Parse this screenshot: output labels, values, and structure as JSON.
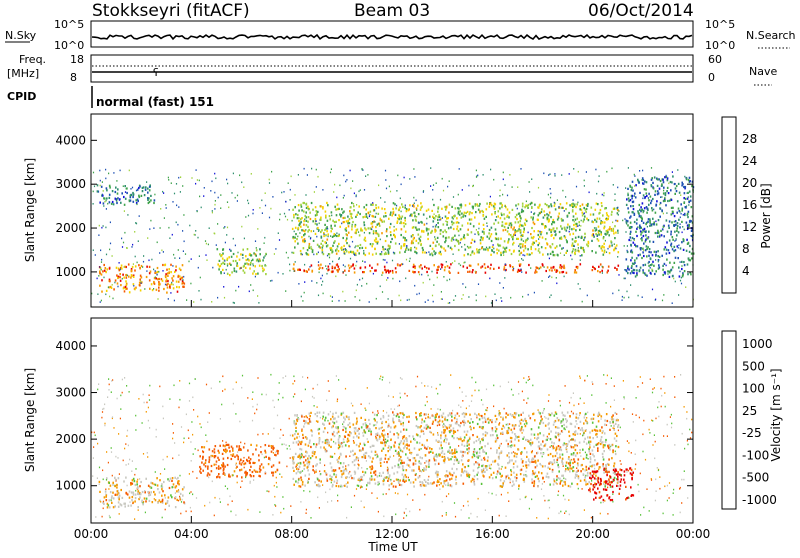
{
  "header": {
    "title": "Stokkseyri (fitACF)",
    "beam": "Beam 03",
    "date": "06/Oct/2014"
  },
  "aux": {
    "nsky_label": "N.Sky",
    "nsky_ticks": [
      "10^5",
      "10^0"
    ],
    "nsearch_label": "N.Search",
    "nsearch_ticks": [
      "10^5",
      "10^0"
    ],
    "freq_label": "Freq.",
    "freq_unit": "[MHz]",
    "freq_ticks": [
      "18",
      "8"
    ],
    "nave_label": "Nave",
    "nave_ticks": [
      "60",
      "0"
    ],
    "cpid_label": "CPID",
    "cpid_value": "normal (fast) 151"
  },
  "colors": {
    "power": [
      "#1414d8",
      "#1e50b4",
      "#2f8f6e",
      "#3fa34a",
      "#9fd23c",
      "#f5d200",
      "#f59a00",
      "#f55a00",
      "#e60000"
    ],
    "velocity": [
      "#e60000",
      "#f55a00",
      "#f59a00",
      "#c8c8c0",
      "#c8c8c0",
      "#59c23a",
      "#2f8f6e",
      "#1e50b4"
    ]
  },
  "chart_data": [
    {
      "type": "heatmap",
      "name": "power",
      "xlabel": "Time UT",
      "ylabel": "Slant Range [km]",
      "xlim": [
        0,
        24
      ],
      "ylim": [
        200,
        4600
      ],
      "x_ticks": [
        "00:00",
        "04:00",
        "08:00",
        "12:00",
        "16:00",
        "20:00",
        "00:00"
      ],
      "y_ticks": [
        "1000",
        "2000",
        "3000",
        "4000"
      ],
      "colorbar": {
        "label": "Power [dB]",
        "ticks": [
          "4",
          "8",
          "12",
          "16",
          "20",
          "24",
          "28"
        ]
      },
      "features": [
        {
          "t0": 0.3,
          "t1": 3.7,
          "r0": 550,
          "r1": 1200,
          "value": 24
        },
        {
          "t0": 0.2,
          "t1": 2.5,
          "r0": 2550,
          "r1": 3000,
          "value": 8
        },
        {
          "t0": 5.0,
          "t1": 7.0,
          "r0": 950,
          "r1": 1550,
          "value": 16
        },
        {
          "t0": 8.0,
          "t1": 21.0,
          "r0": 1000,
          "r1": 1200,
          "value": 28
        },
        {
          "t0": 8.0,
          "t1": 21.0,
          "r0": 1400,
          "r1": 2600,
          "value": 16
        },
        {
          "t0": 21.3,
          "t1": 24.0,
          "r0": 900,
          "r1": 3200,
          "value": 8
        }
      ]
    },
    {
      "type": "heatmap",
      "name": "velocity",
      "xlabel": "Time UT",
      "ylabel": "Slant Range [km]",
      "xlim": [
        0,
        24
      ],
      "ylim": [
        200,
        4600
      ],
      "x_ticks": [
        "00:00",
        "04:00",
        "08:00",
        "12:00",
        "16:00",
        "20:00",
        "00:00"
      ],
      "y_ticks": [
        "1000",
        "2000",
        "3000",
        "4000"
      ],
      "colorbar": {
        "label": "Velocity [m s⁻¹]",
        "ticks": [
          "1000",
          "500",
          "100",
          "25",
          "-25",
          "-100",
          "-500",
          "-1000"
        ]
      },
      "features": [
        {
          "t0": 0.3,
          "t1": 3.7,
          "r0": 550,
          "r1": 1200,
          "value": 0
        },
        {
          "t0": 4.3,
          "t1": 7.5,
          "r0": 1200,
          "r1": 1900,
          "value": -200
        },
        {
          "t0": 8.0,
          "t1": 21.0,
          "r0": 1000,
          "r1": 2600,
          "value": 0
        },
        {
          "t0": 19.8,
          "t1": 21.6,
          "r0": 700,
          "r1": 1400,
          "value": -600
        }
      ]
    }
  ]
}
